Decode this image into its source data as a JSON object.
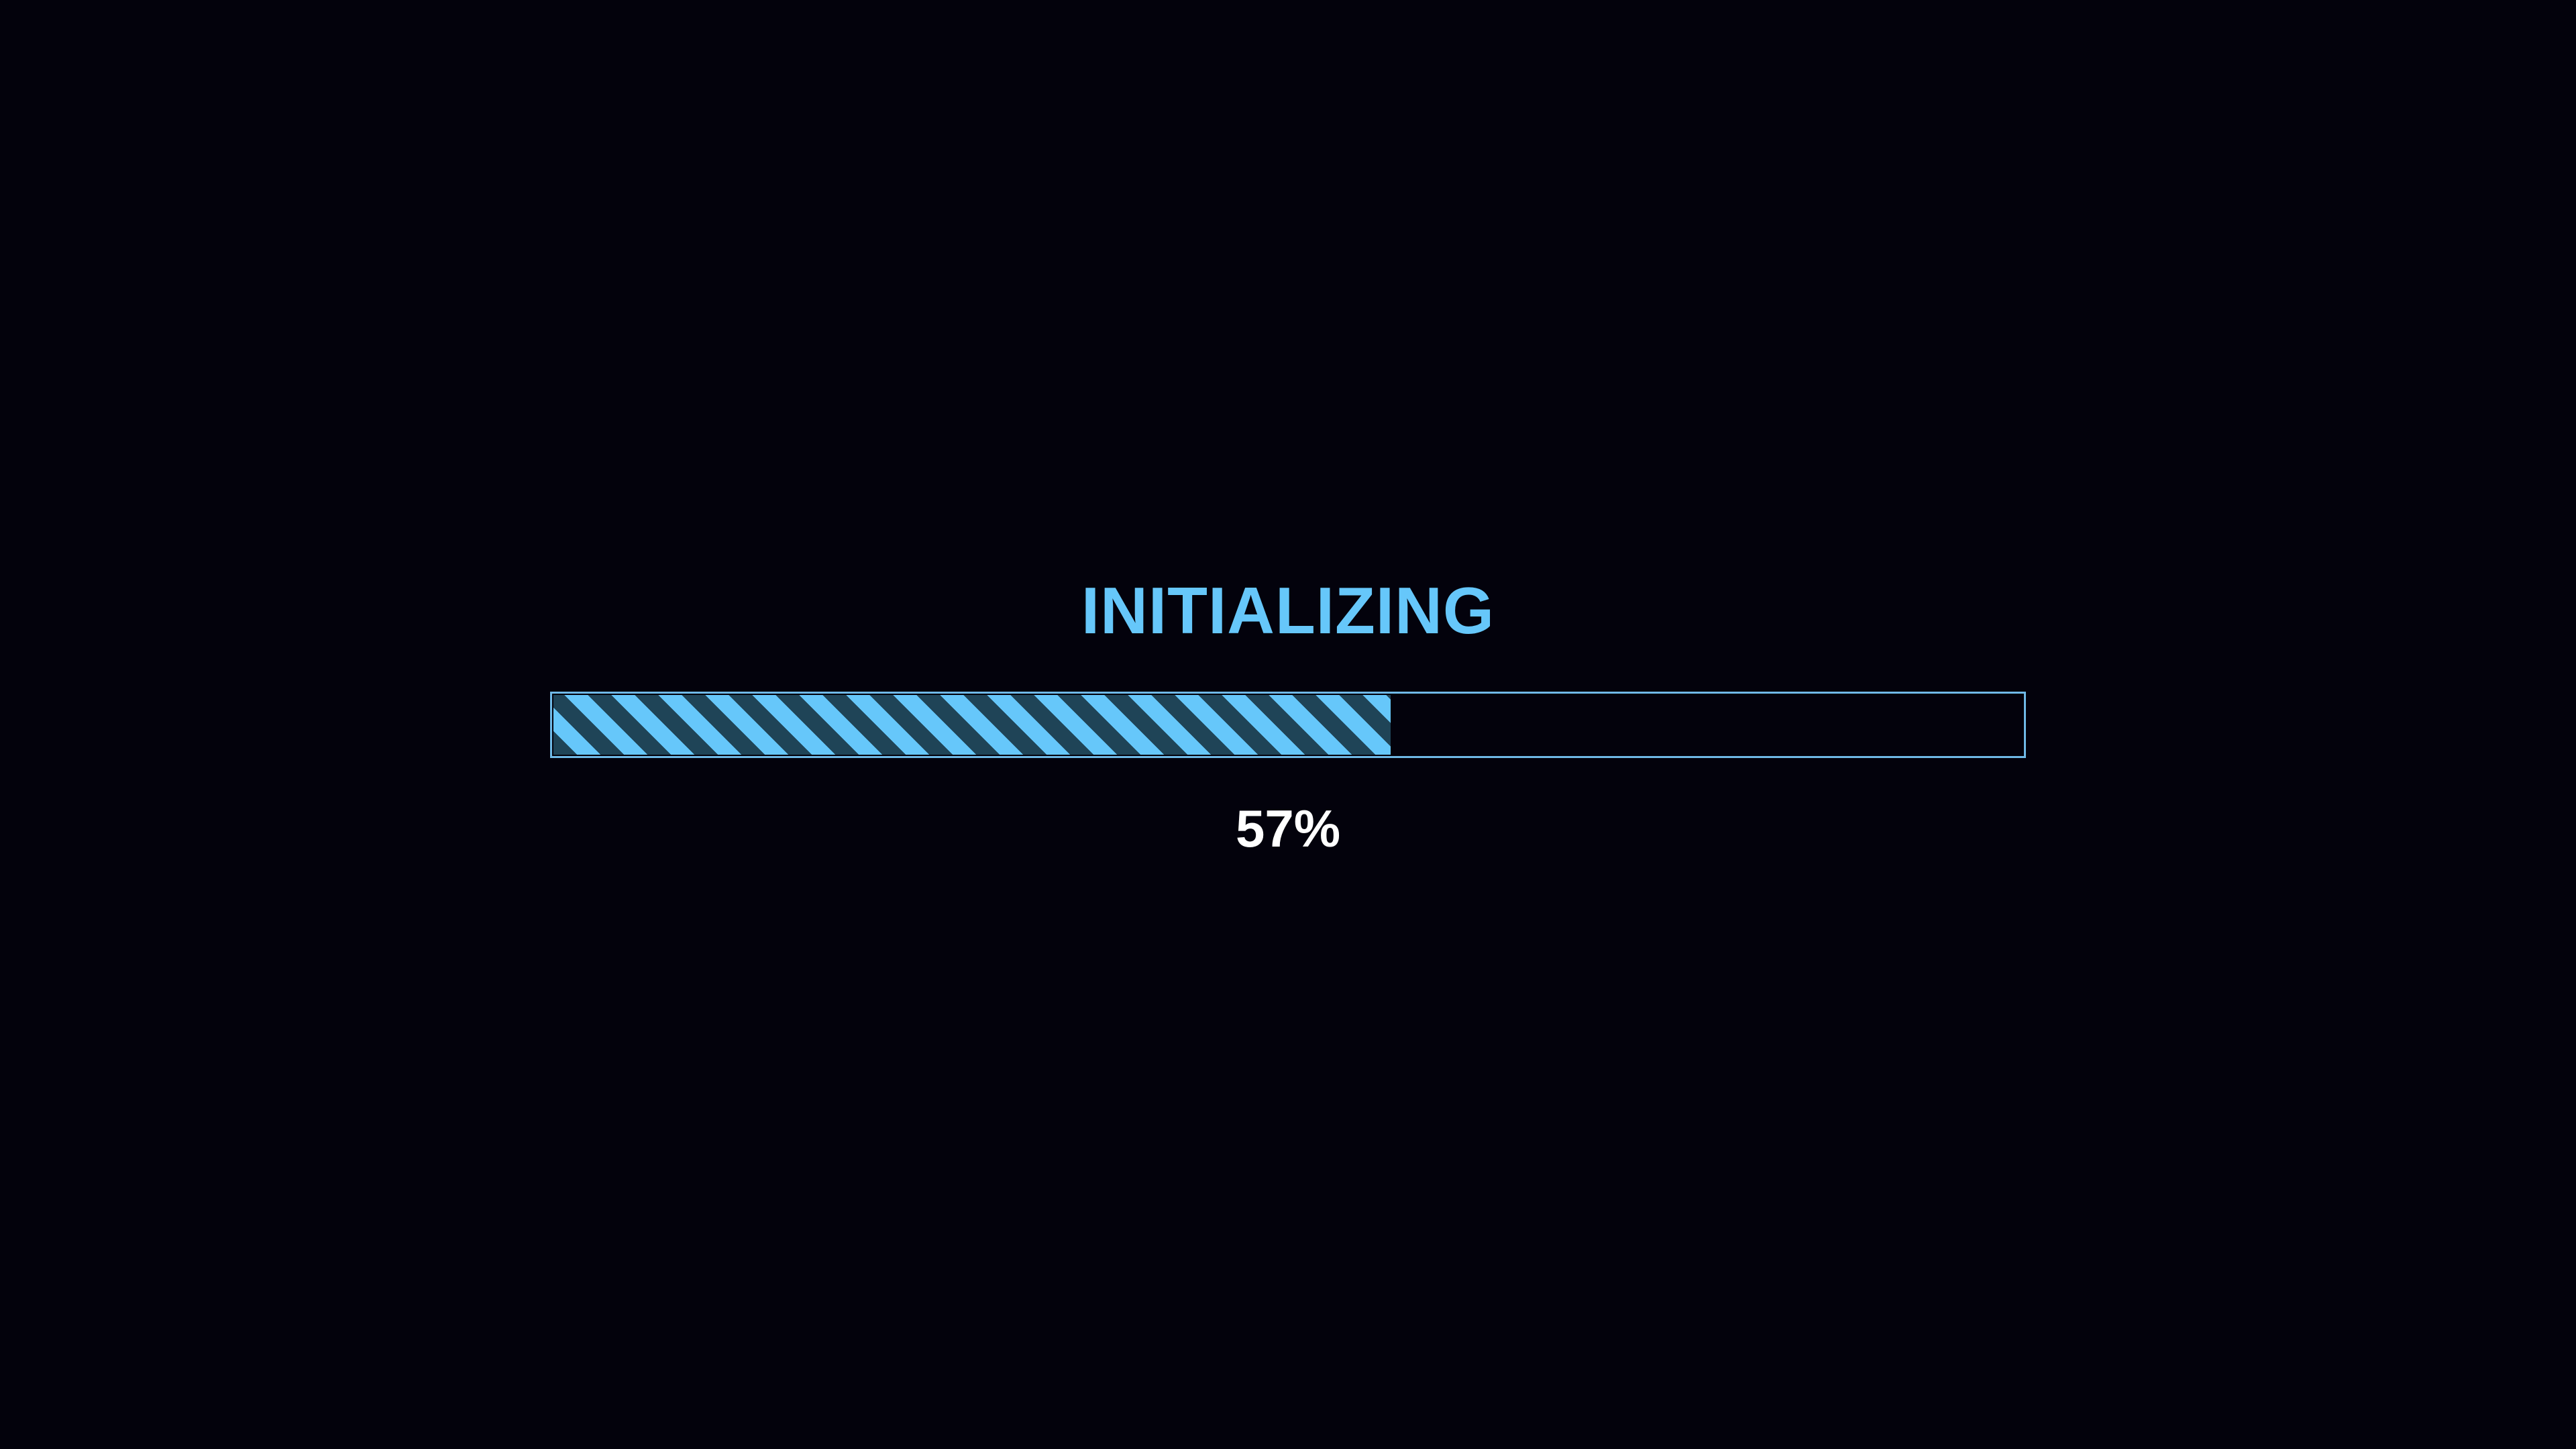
{
  "loader": {
    "title": "INITIALIZING",
    "progress_percent": 57,
    "progress_label": "57%",
    "colors": {
      "background": "#03020c",
      "accent": "#66c7fa",
      "stripe_dark": "#1f4457",
      "border": "#6fb9e6",
      "percent_text": "#ffffff"
    }
  }
}
